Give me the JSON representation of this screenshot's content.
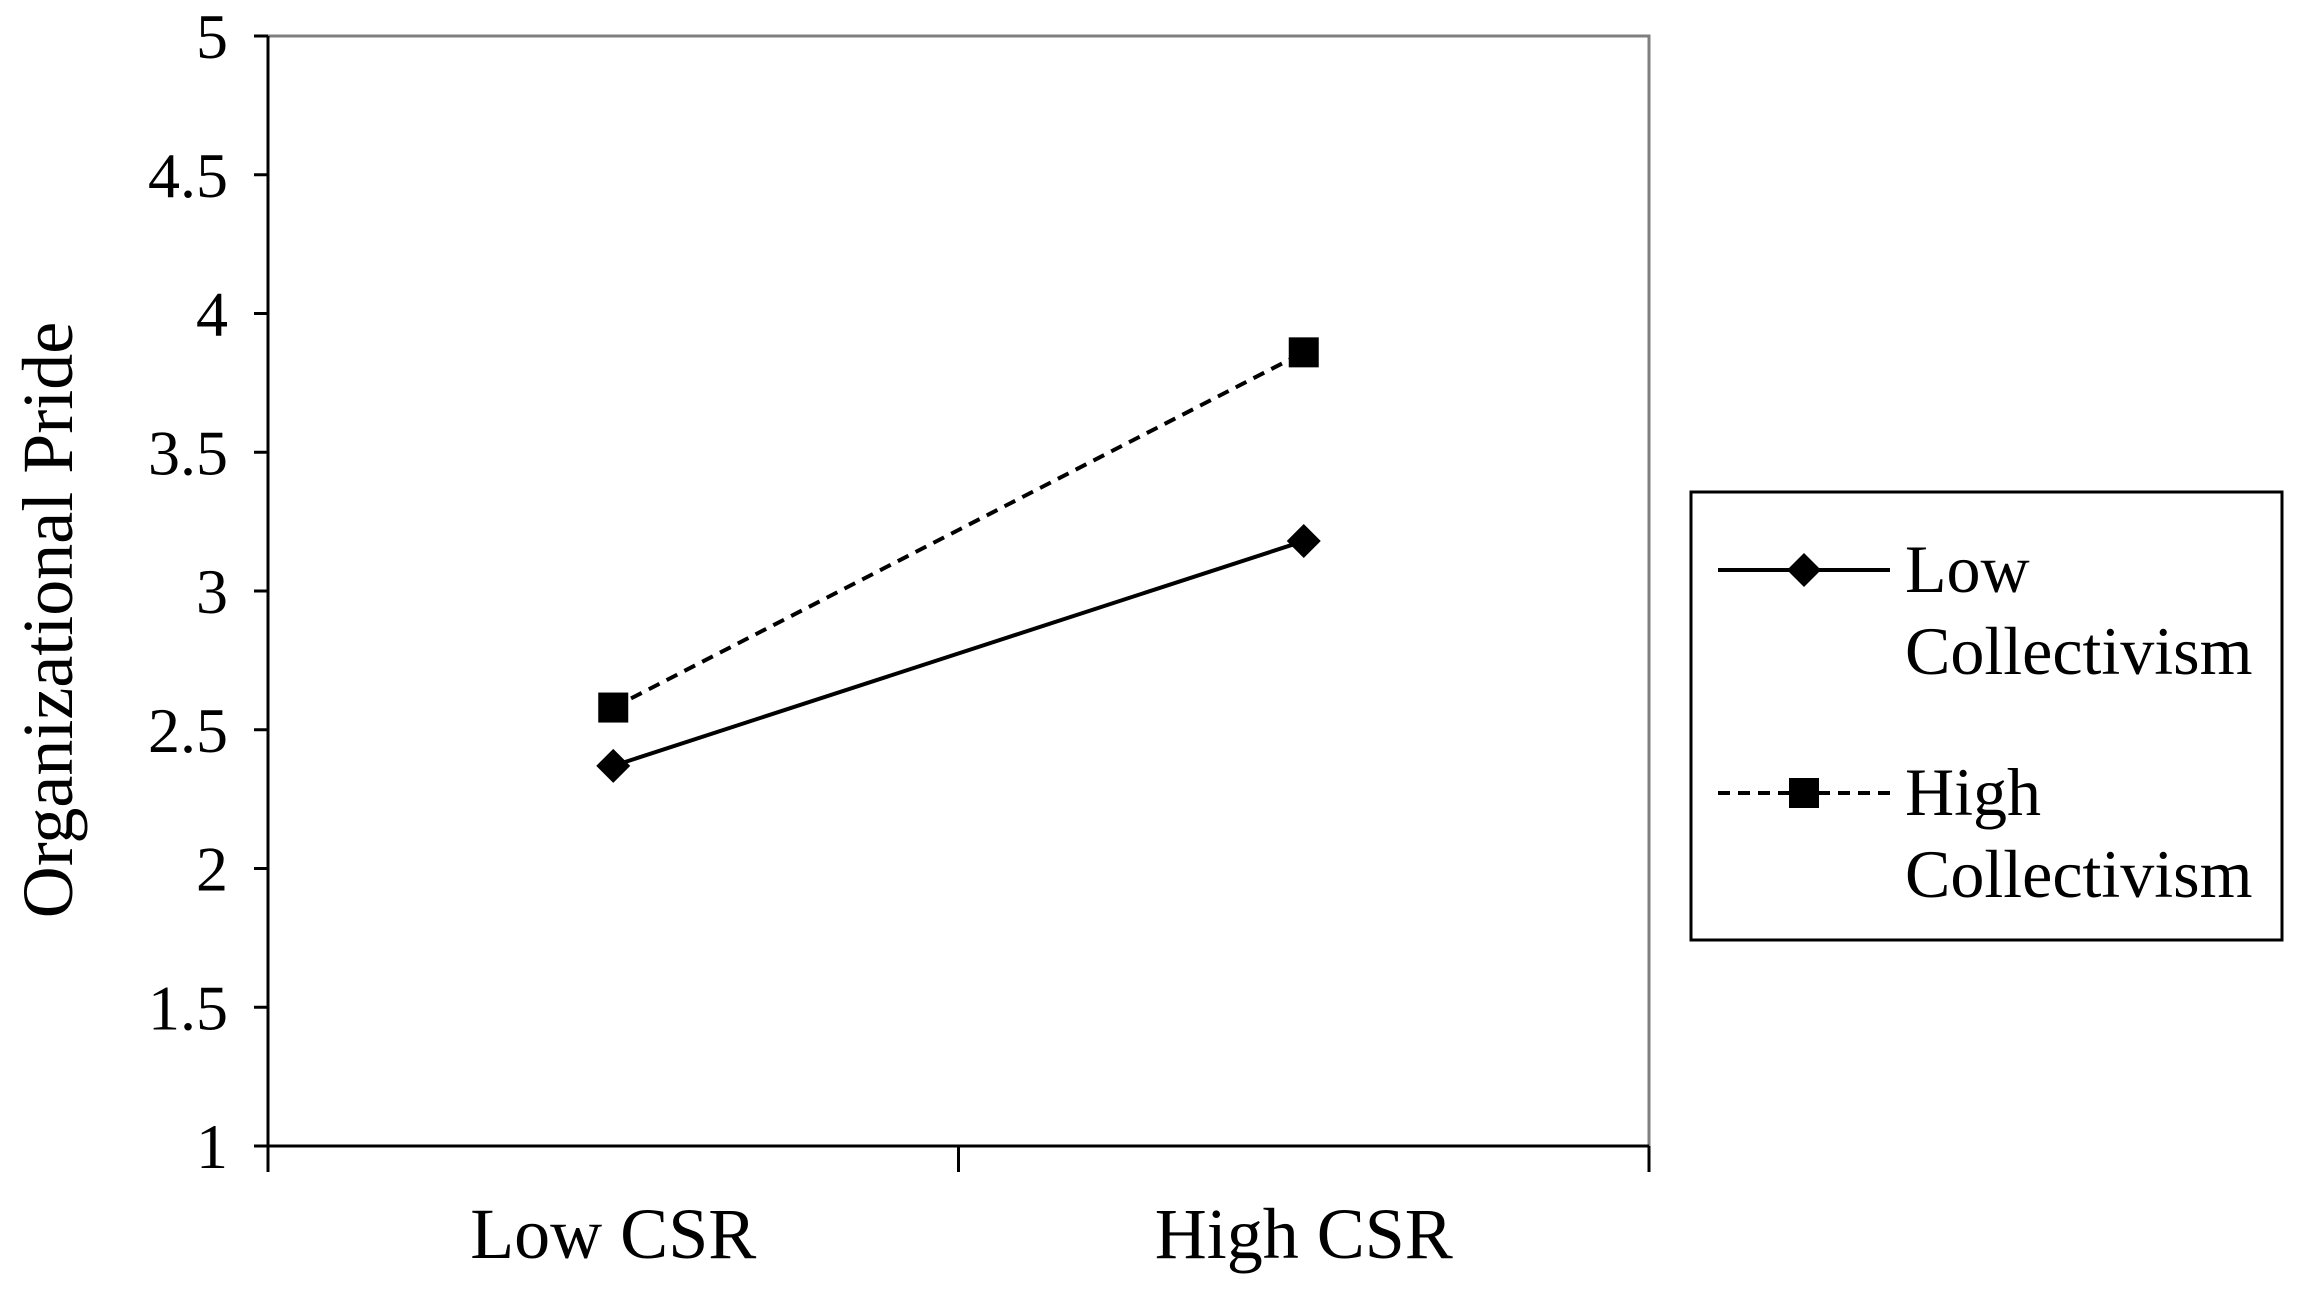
{
  "chart_data": {
    "type": "line",
    "title": "",
    "xlabel": "",
    "ylabel": "Organizational Pride",
    "categories": [
      "Low CSR",
      "High CSR"
    ],
    "ylim": [
      1,
      5
    ],
    "yticks": [
      "1",
      "1.5",
      "2",
      "2.5",
      "3",
      "3.5",
      "4",
      "4.5",
      "5"
    ],
    "grid": false,
    "legend_position": "right",
    "series": [
      {
        "name": "Low Collectivism",
        "legend_lines": [
          "Low",
          "Collectivism"
        ],
        "values": [
          2.37,
          3.18
        ],
        "line_style": "solid",
        "marker": "diamond",
        "color": "#000000"
      },
      {
        "name": "High Collectivism",
        "legend_lines": [
          "High",
          "Collectivism"
        ],
        "values": [
          2.58,
          3.86
        ],
        "line_style": "dashed",
        "marker": "square",
        "color": "#000000"
      }
    ]
  }
}
